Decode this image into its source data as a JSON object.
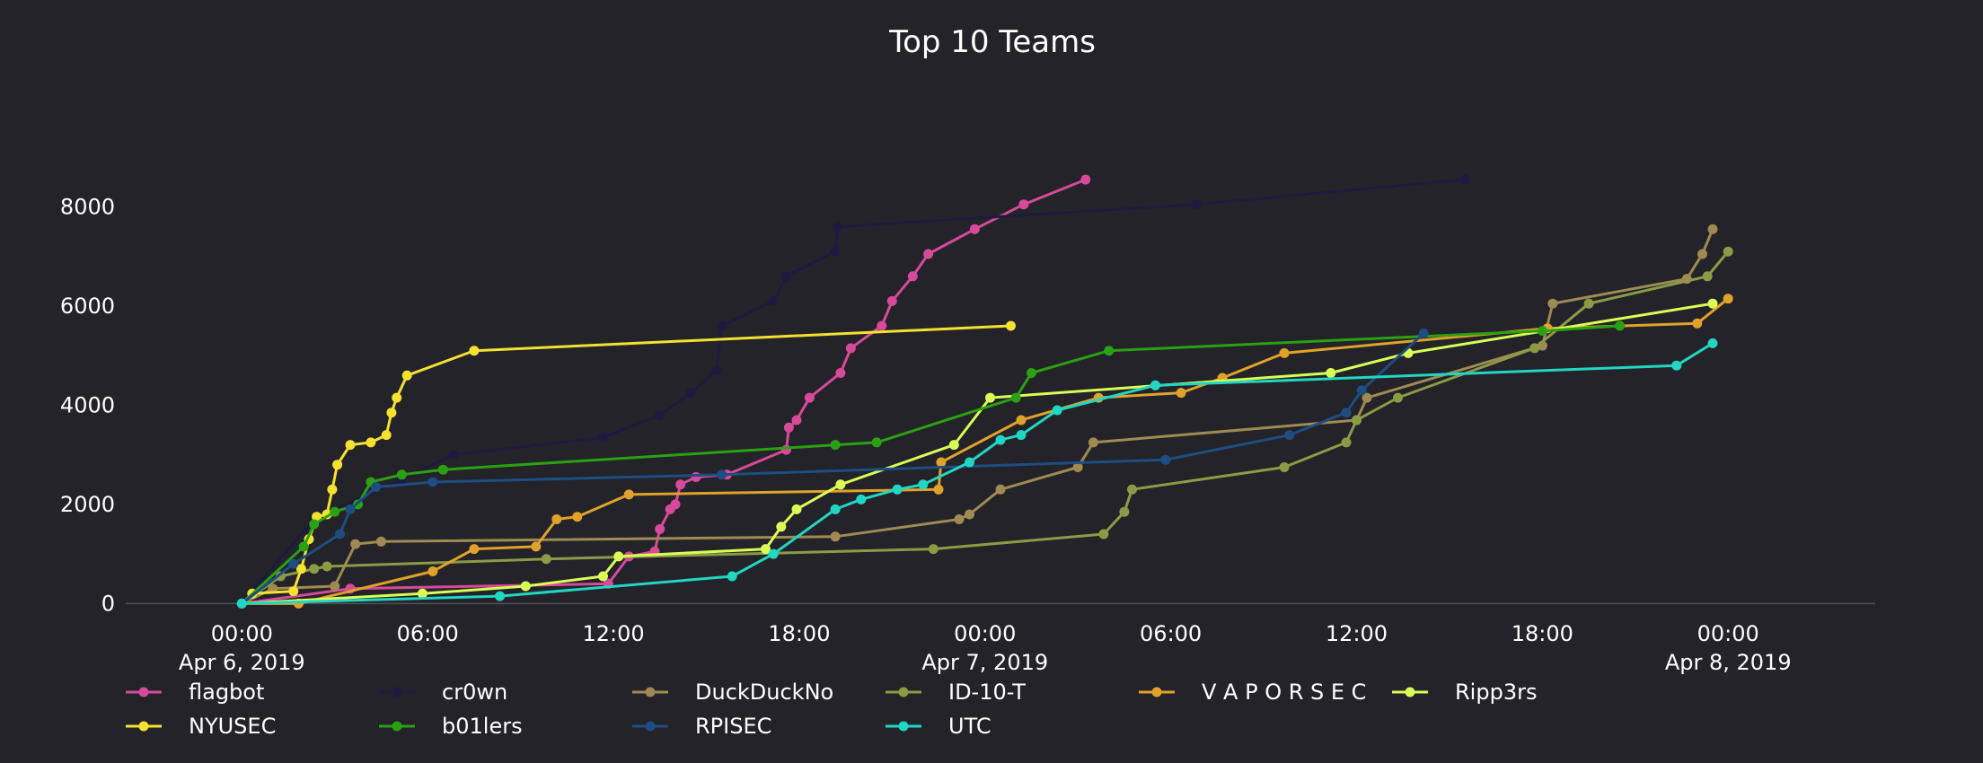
{
  "chart_data": {
    "type": "line",
    "title": "Top 10 Teams",
    "xlabel": "",
    "ylabel": "",
    "x_type": "datetime",
    "xlim": [
      "2019-04-05 20:15",
      "2019-04-08 04:45"
    ],
    "ylim": [
      -500,
      10000
    ],
    "y_ticks": [
      0,
      2000,
      4000,
      6000,
      8000
    ],
    "x_ticks": [
      {
        "t": "2019-04-06 00:00",
        "label": "00:00",
        "sublabel": "Apr 6, 2019"
      },
      {
        "t": "2019-04-06 06:00",
        "label": "06:00",
        "sublabel": ""
      },
      {
        "t": "2019-04-06 12:00",
        "label": "12:00",
        "sublabel": ""
      },
      {
        "t": "2019-04-06 18:00",
        "label": "18:00",
        "sublabel": ""
      },
      {
        "t": "2019-04-07 00:00",
        "label": "00:00",
        "sublabel": "Apr 7, 2019"
      },
      {
        "t": "2019-04-07 06:00",
        "label": "06:00",
        "sublabel": ""
      },
      {
        "t": "2019-04-07 12:00",
        "label": "12:00",
        "sublabel": ""
      },
      {
        "t": "2019-04-07 18:00",
        "label": "18:00",
        "sublabel": ""
      },
      {
        "t": "2019-04-08 00:00",
        "label": "00:00",
        "sublabel": "Apr 8, 2019"
      }
    ],
    "grid": false,
    "legend_position": "bottom",
    "series": [
      {
        "name": "flagbot",
        "color": "#d7499a",
        "points": [
          [
            "2019-04-06 00:00",
            0
          ],
          [
            "2019-04-06 03:30",
            300
          ],
          [
            "2019-04-06 11:50",
            400
          ],
          [
            "2019-04-06 12:30",
            950
          ],
          [
            "2019-04-06 13:20",
            1050
          ],
          [
            "2019-04-06 13:30",
            1500
          ],
          [
            "2019-04-06 13:50",
            1900
          ],
          [
            "2019-04-06 14:00",
            2000
          ],
          [
            "2019-04-06 14:10",
            2400
          ],
          [
            "2019-04-06 14:40",
            2550
          ],
          [
            "2019-04-06 15:40",
            2600
          ],
          [
            "2019-04-06 17:35",
            3100
          ],
          [
            "2019-04-06 17:40",
            3550
          ],
          [
            "2019-04-06 17:55",
            3700
          ],
          [
            "2019-04-06 18:20",
            4150
          ],
          [
            "2019-04-06 19:20",
            4650
          ],
          [
            "2019-04-06 19:40",
            5150
          ],
          [
            "2019-04-06 20:40",
            5600
          ],
          [
            "2019-04-06 21:00",
            6100
          ],
          [
            "2019-04-06 21:40",
            6600
          ],
          [
            "2019-04-06 22:10",
            7050
          ],
          [
            "2019-04-06 23:40",
            7550
          ],
          [
            "2019-04-07 01:15",
            8050
          ],
          [
            "2019-04-07 03:15",
            8550
          ]
        ]
      },
      {
        "name": "cr0wn",
        "color": "#1e1a3f",
        "points": [
          [
            "2019-04-06 00:00",
            0
          ],
          [
            "2019-04-06 02:20",
            1700
          ],
          [
            "2019-04-06 05:10",
            2500
          ],
          [
            "2019-04-06 06:50",
            3000
          ],
          [
            "2019-04-06 11:40",
            3350
          ],
          [
            "2019-04-06 13:30",
            3800
          ],
          [
            "2019-04-06 14:30",
            4250
          ],
          [
            "2019-04-06 15:20",
            4700
          ],
          [
            "2019-04-06 15:30",
            5600
          ],
          [
            "2019-04-06 17:10",
            6100
          ],
          [
            "2019-04-06 17:35",
            6600
          ],
          [
            "2019-04-06 19:10",
            7100
          ],
          [
            "2019-04-06 19:15",
            7600
          ],
          [
            "2019-04-07 06:50",
            8050
          ],
          [
            "2019-04-07 15:30",
            8550
          ]
        ]
      },
      {
        "name": "DuckDuckNo",
        "color": "#a08a52",
        "points": [
          [
            "2019-04-06 00:00",
            0
          ],
          [
            "2019-04-06 01:00",
            300
          ],
          [
            "2019-04-06 03:00",
            350
          ],
          [
            "2019-04-06 03:40",
            1200
          ],
          [
            "2019-04-06 04:30",
            1250
          ],
          [
            "2019-04-06 19:10",
            1350
          ],
          [
            "2019-04-06 23:10",
            1700
          ],
          [
            "2019-04-06 23:30",
            1800
          ],
          [
            "2019-04-07 00:30",
            2300
          ],
          [
            "2019-04-07 03:00",
            2750
          ],
          [
            "2019-04-07 03:30",
            3250
          ],
          [
            "2019-04-07 12:00",
            3700
          ],
          [
            "2019-04-07 12:20",
            4150
          ],
          [
            "2019-04-07 18:00",
            5200
          ],
          [
            "2019-04-07 18:20",
            6050
          ],
          [
            "2019-04-07 22:40",
            6550
          ],
          [
            "2019-04-07 23:10",
            7050
          ],
          [
            "2019-04-07 23:30",
            7550
          ]
        ]
      },
      {
        "name": "ID-10-T",
        "color": "#8b9b45",
        "points": [
          [
            "2019-04-06 00:00",
            0
          ],
          [
            "2019-04-06 01:15",
            550
          ],
          [
            "2019-04-06 02:20",
            700
          ],
          [
            "2019-04-06 02:45",
            750
          ],
          [
            "2019-04-06 09:50",
            900
          ],
          [
            "2019-04-06 22:20",
            1100
          ],
          [
            "2019-04-07 03:50",
            1400
          ],
          [
            "2019-04-07 04:30",
            1850
          ],
          [
            "2019-04-07 04:45",
            2300
          ],
          [
            "2019-04-07 09:40",
            2750
          ],
          [
            "2019-04-07 11:40",
            3250
          ],
          [
            "2019-04-07 12:00",
            3700
          ],
          [
            "2019-04-07 13:20",
            4150
          ],
          [
            "2019-04-07 17:45",
            5150
          ],
          [
            "2019-04-07 19:30",
            6050
          ],
          [
            "2019-04-07 23:20",
            6600
          ],
          [
            "2019-04-08 00:00",
            7100
          ]
        ]
      },
      {
        "name": "V A P O R S E C",
        "color": "#e0a22a",
        "points": [
          [
            "2019-04-06 00:00",
            0
          ],
          [
            "2019-04-06 01:50",
            0
          ],
          [
            "2019-04-06 06:10",
            650
          ],
          [
            "2019-04-06 07:30",
            1100
          ],
          [
            "2019-04-06 09:30",
            1150
          ],
          [
            "2019-04-06 10:10",
            1700
          ],
          [
            "2019-04-06 10:50",
            1750
          ],
          [
            "2019-04-06 12:30",
            2200
          ],
          [
            "2019-04-06 22:30",
            2300
          ],
          [
            "2019-04-06 22:35",
            2850
          ],
          [
            "2019-04-07 01:10",
            3700
          ],
          [
            "2019-04-07 03:40",
            4150
          ],
          [
            "2019-04-07 06:20",
            4250
          ],
          [
            "2019-04-07 07:40",
            4550
          ],
          [
            "2019-04-07 09:40",
            5050
          ],
          [
            "2019-04-07 18:10",
            5550
          ],
          [
            "2019-04-07 23:00",
            5650
          ],
          [
            "2019-04-08 00:00",
            6150
          ]
        ]
      },
      {
        "name": "Ripp3rs",
        "color": "#dafc57",
        "points": [
          [
            "2019-04-06 00:00",
            0
          ],
          [
            "2019-04-06 05:50",
            200
          ],
          [
            "2019-04-06 09:10",
            350
          ],
          [
            "2019-04-06 11:40",
            550
          ],
          [
            "2019-04-06 12:10",
            950
          ],
          [
            "2019-04-06 16:55",
            1100
          ],
          [
            "2019-04-06 17:25",
            1550
          ],
          [
            "2019-04-06 17:55",
            1900
          ],
          [
            "2019-04-06 19:20",
            2400
          ],
          [
            "2019-04-06 23:00",
            3200
          ],
          [
            "2019-04-07 00:10",
            4150
          ],
          [
            "2019-04-07 11:10",
            4650
          ],
          [
            "2019-04-07 13:40",
            5050
          ],
          [
            "2019-04-07 23:30",
            6050
          ]
        ]
      },
      {
        "name": "NYUSEC",
        "color": "#f5e12f",
        "points": [
          [
            "2019-04-06 00:00",
            0
          ],
          [
            "2019-04-06 00:20",
            200
          ],
          [
            "2019-04-06 01:40",
            250
          ],
          [
            "2019-04-06 01:55",
            700
          ],
          [
            "2019-04-06 02:10",
            1300
          ],
          [
            "2019-04-06 02:25",
            1750
          ],
          [
            "2019-04-06 02:45",
            1800
          ],
          [
            "2019-04-06 02:55",
            2300
          ],
          [
            "2019-04-06 03:05",
            2800
          ],
          [
            "2019-04-06 03:30",
            3200
          ],
          [
            "2019-04-06 04:10",
            3250
          ],
          [
            "2019-04-06 04:40",
            3400
          ],
          [
            "2019-04-06 04:50",
            3850
          ],
          [
            "2019-04-06 05:00",
            4150
          ],
          [
            "2019-04-06 05:20",
            4600
          ],
          [
            "2019-04-06 07:30",
            5100
          ],
          [
            "2019-04-07 00:50",
            5600
          ]
        ]
      },
      {
        "name": "b01lers",
        "color": "#2aa012",
        "points": [
          [
            "2019-04-06 00:00",
            0
          ],
          [
            "2019-04-06 02:00",
            1150
          ],
          [
            "2019-04-06 02:20",
            1600
          ],
          [
            "2019-04-06 03:00",
            1850
          ],
          [
            "2019-04-06 03:45",
            2000
          ],
          [
            "2019-04-06 04:10",
            2450
          ],
          [
            "2019-04-06 05:10",
            2600
          ],
          [
            "2019-04-06 06:30",
            2700
          ],
          [
            "2019-04-06 19:10",
            3200
          ],
          [
            "2019-04-06 20:30",
            3250
          ],
          [
            "2019-04-07 01:00",
            4150
          ],
          [
            "2019-04-07 01:30",
            4650
          ],
          [
            "2019-04-07 04:00",
            5100
          ],
          [
            "2019-04-07 18:00",
            5500
          ],
          [
            "2019-04-07 20:30",
            5600
          ]
        ]
      },
      {
        "name": "RPISEC",
        "color": "#1d4d82",
        "points": [
          [
            "2019-04-06 00:00",
            0
          ],
          [
            "2019-04-06 01:40",
            800
          ],
          [
            "2019-04-06 03:10",
            1400
          ],
          [
            "2019-04-06 03:30",
            1900
          ],
          [
            "2019-04-06 04:20",
            2350
          ],
          [
            "2019-04-06 06:10",
            2450
          ],
          [
            "2019-04-06 15:30",
            2600
          ],
          [
            "2019-04-07 05:50",
            2900
          ],
          [
            "2019-04-07 09:50",
            3400
          ],
          [
            "2019-04-07 11:40",
            3850
          ],
          [
            "2019-04-07 12:10",
            4300
          ],
          [
            "2019-04-07 14:10",
            5450
          ]
        ]
      },
      {
        "name": "UTC",
        "color": "#21d6c3",
        "points": [
          [
            "2019-04-06 00:00",
            0
          ],
          [
            "2019-04-06 08:20",
            150
          ],
          [
            "2019-04-06 15:50",
            550
          ],
          [
            "2019-04-06 17:10",
            1000
          ],
          [
            "2019-04-06 19:10",
            1900
          ],
          [
            "2019-04-06 20:00",
            2100
          ],
          [
            "2019-04-06 21:10",
            2300
          ],
          [
            "2019-04-06 22:00",
            2400
          ],
          [
            "2019-04-06 23:30",
            2850
          ],
          [
            "2019-04-07 00:30",
            3300
          ],
          [
            "2019-04-07 01:10",
            3400
          ],
          [
            "2019-04-07 02:20",
            3900
          ],
          [
            "2019-04-07 05:30",
            4400
          ],
          [
            "2019-04-07 22:20",
            4800
          ],
          [
            "2019-04-07 23:30",
            5250
          ]
        ]
      }
    ]
  }
}
